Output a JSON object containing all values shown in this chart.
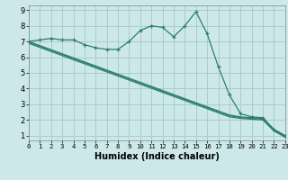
{
  "xlabel": "Humidex (Indice chaleur)",
  "bg_color": "#cce8e8",
  "grid_color": "#aacccc",
  "line_color": "#2d7d6e",
  "x": [
    0,
    1,
    2,
    3,
    4,
    5,
    6,
    7,
    8,
    9,
    10,
    11,
    12,
    13,
    14,
    15,
    16,
    17,
    18,
    19,
    20,
    21,
    22,
    23
  ],
  "jagged": [
    7.0,
    7.1,
    7.2,
    7.1,
    7.1,
    6.8,
    6.6,
    6.5,
    6.5,
    7.0,
    7.7,
    8.0,
    7.9,
    7.3,
    8.0,
    8.9,
    7.5,
    5.4,
    3.6,
    2.4,
    2.2,
    2.15,
    1.4,
    1.0
  ],
  "regr1": [
    7.0,
    6.74,
    6.48,
    6.22,
    5.96,
    5.7,
    5.44,
    5.18,
    4.92,
    4.66,
    4.4,
    4.14,
    3.88,
    3.62,
    3.36,
    3.1,
    2.84,
    2.58,
    2.32,
    2.2,
    2.15,
    2.1,
    1.4,
    1.0
  ],
  "regr2": [
    6.95,
    6.69,
    6.43,
    6.17,
    5.91,
    5.65,
    5.39,
    5.13,
    4.87,
    4.61,
    4.35,
    4.09,
    3.83,
    3.57,
    3.31,
    3.05,
    2.79,
    2.53,
    2.27,
    2.15,
    2.1,
    2.05,
    1.35,
    0.95
  ],
  "regr3": [
    6.88,
    6.62,
    6.36,
    6.1,
    5.84,
    5.58,
    5.32,
    5.06,
    4.8,
    4.54,
    4.28,
    4.02,
    3.76,
    3.5,
    3.24,
    2.98,
    2.72,
    2.46,
    2.2,
    2.1,
    2.05,
    2.0,
    1.3,
    0.9
  ],
  "xlim": [
    0,
    23
  ],
  "ylim": [
    0.7,
    9.3
  ],
  "yticks": [
    1,
    2,
    3,
    4,
    5,
    6,
    7,
    8,
    9
  ],
  "xticks": [
    0,
    1,
    2,
    3,
    4,
    5,
    6,
    7,
    8,
    9,
    10,
    11,
    12,
    13,
    14,
    15,
    16,
    17,
    18,
    19,
    20,
    21,
    22,
    23
  ]
}
